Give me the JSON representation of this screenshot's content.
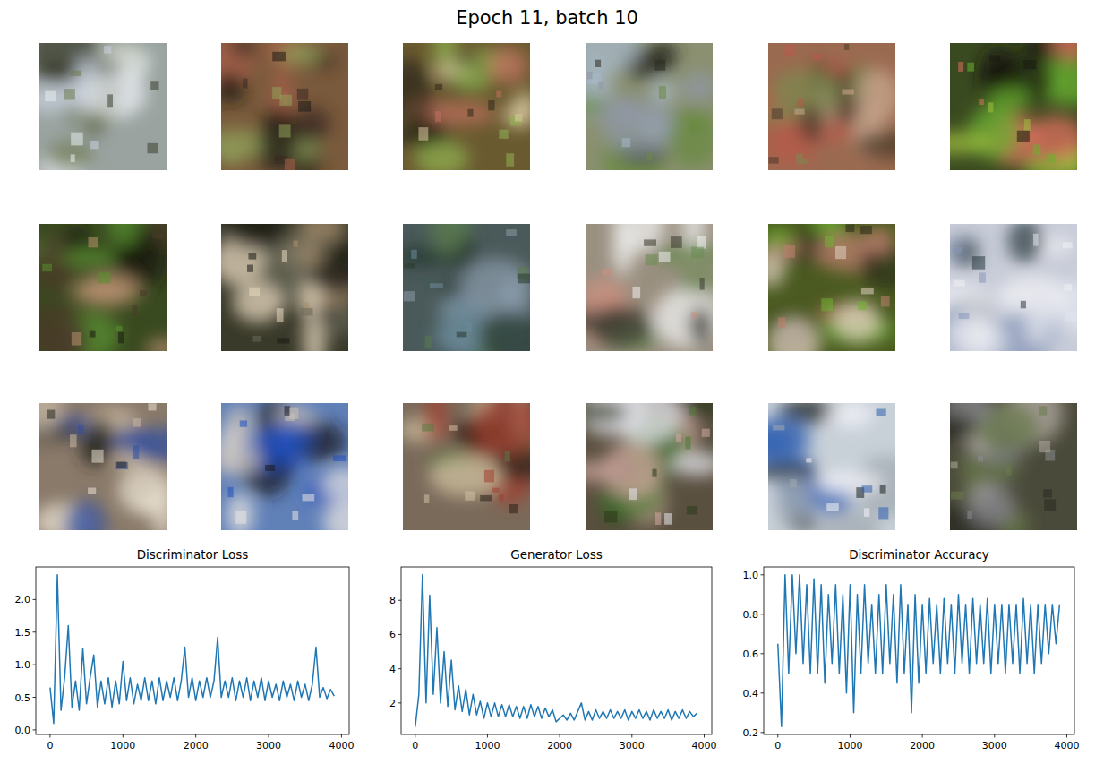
{
  "figure": {
    "title": "Epoch 11, batch 10"
  },
  "chart_data": [
    {
      "type": "line",
      "title": "Discriminator Loss",
      "grid": false,
      "xlim": [
        -195.5,
        4105.5
      ],
      "ylim": [
        -0.07,
        2.5
      ],
      "xticks": [
        0,
        1000,
        2000,
        3000,
        4000
      ],
      "yticks": [
        {
          "value": 0,
          "label": "0.0"
        },
        0.5,
        {
          "value": 1,
          "label": "1.0"
        },
        1.5,
        {
          "value": 2,
          "label": "2.0"
        }
      ],
      "x": [
        0,
        50,
        100,
        150,
        200,
        250,
        300,
        350,
        400,
        450,
        500,
        550,
        600,
        650,
        700,
        750,
        800,
        850,
        900,
        950,
        1000,
        1050,
        1100,
        1150,
        1200,
        1250,
        1300,
        1350,
        1400,
        1450,
        1500,
        1550,
        1600,
        1650,
        1700,
        1750,
        1800,
        1850,
        1900,
        1950,
        2000,
        2050,
        2100,
        2150,
        2200,
        2250,
        2300,
        2350,
        2400,
        2450,
        2500,
        2550,
        2600,
        2650,
        2700,
        2750,
        2800,
        2850,
        2900,
        2950,
        3000,
        3050,
        3100,
        3150,
        3200,
        3250,
        3300,
        3350,
        3400,
        3450,
        3500,
        3550,
        3600,
        3650,
        3700,
        3750,
        3800,
        3850,
        3900
      ],
      "series": [
        {
          "color": "#1f77b4",
          "values": [
            0.65,
            0.1,
            2.38,
            0.3,
            0.8,
            1.6,
            0.35,
            0.75,
            0.3,
            1.25,
            0.4,
            0.8,
            1.15,
            0.35,
            0.75,
            0.4,
            0.8,
            0.35,
            0.75,
            0.4,
            1.05,
            0.45,
            0.8,
            0.4,
            0.7,
            0.45,
            0.8,
            0.45,
            0.75,
            0.4,
            0.8,
            0.45,
            0.75,
            0.5,
            0.8,
            0.45,
            0.75,
            1.27,
            0.5,
            0.8,
            0.45,
            0.75,
            0.5,
            0.8,
            0.5,
            0.75,
            1.42,
            0.5,
            0.75,
            0.5,
            0.8,
            0.45,
            0.75,
            0.5,
            0.8,
            0.45,
            0.75,
            0.5,
            0.8,
            0.45,
            0.75,
            0.5,
            0.7,
            0.45,
            0.75,
            0.5,
            0.7,
            0.45,
            0.75,
            0.5,
            0.7,
            0.45,
            0.7,
            1.27,
            0.5,
            0.65,
            0.48,
            0.62,
            0.52
          ]
        }
      ]
    },
    {
      "type": "line",
      "title": "Generator Loss",
      "grid": false,
      "xlim": [
        -195.5,
        4105.5
      ],
      "ylim": [
        0.16,
        9.95
      ],
      "xticks": [
        0,
        1000,
        2000,
        3000,
        4000
      ],
      "yticks": [
        2,
        4,
        6,
        8
      ],
      "x": [
        0,
        50,
        100,
        150,
        200,
        250,
        300,
        350,
        400,
        450,
        500,
        550,
        600,
        650,
        700,
        750,
        800,
        850,
        900,
        950,
        1000,
        1050,
        1100,
        1150,
        1200,
        1250,
        1300,
        1350,
        1400,
        1450,
        1500,
        1550,
        1600,
        1650,
        1700,
        1750,
        1800,
        1850,
        1900,
        1950,
        2000,
        2050,
        2100,
        2150,
        2200,
        2250,
        2300,
        2350,
        2400,
        2450,
        2500,
        2550,
        2600,
        2650,
        2700,
        2750,
        2800,
        2850,
        2900,
        2950,
        3000,
        3050,
        3100,
        3150,
        3200,
        3250,
        3300,
        3350,
        3400,
        3450,
        3500,
        3550,
        3600,
        3650,
        3700,
        3750,
        3800,
        3850,
        3900
      ],
      "series": [
        {
          "color": "#1f77b4",
          "values": [
            0.6,
            2.5,
            9.5,
            2.0,
            8.3,
            2.5,
            6.4,
            2.0,
            5.0,
            1.8,
            4.5,
            1.6,
            3.0,
            1.5,
            2.8,
            1.3,
            2.5,
            1.3,
            2.1,
            1.1,
            2.0,
            1.2,
            2.0,
            1.2,
            1.9,
            1.2,
            1.9,
            1.2,
            1.8,
            1.1,
            1.8,
            1.1,
            1.9,
            1.2,
            1.8,
            1.1,
            1.7,
            1.2,
            1.6,
            0.9,
            1.1,
            1.3,
            1.0,
            1.4,
            1.0,
            1.5,
            2.0,
            1.0,
            1.5,
            1.0,
            1.6,
            1.1,
            1.5,
            1.1,
            1.6,
            1.1,
            1.5,
            1.1,
            1.6,
            1.0,
            1.5,
            1.1,
            1.6,
            1.1,
            1.5,
            1.0,
            1.6,
            1.1,
            1.5,
            1.1,
            1.6,
            1.0,
            1.5,
            1.1,
            1.6,
            1.1,
            1.5,
            1.2,
            1.4
          ]
        }
      ]
    },
    {
      "type": "line",
      "title": "Discriminator Accuracy",
      "grid": false,
      "xlim": [
        -195.5,
        4105.5
      ],
      "ylim": [
        0.19,
        1.04
      ],
      "xticks": [
        0,
        1000,
        2000,
        3000,
        4000
      ],
      "yticks": [
        0.2,
        0.4,
        0.6,
        0.8,
        {
          "value": 1,
          "label": "1.0"
        }
      ],
      "x": [
        0,
        50,
        100,
        150,
        200,
        250,
        300,
        350,
        400,
        450,
        500,
        550,
        600,
        650,
        700,
        750,
        800,
        850,
        900,
        950,
        1000,
        1050,
        1100,
        1150,
        1200,
        1250,
        1300,
        1350,
        1400,
        1450,
        1500,
        1550,
        1600,
        1650,
        1700,
        1750,
        1800,
        1850,
        1900,
        1950,
        2000,
        2050,
        2100,
        2150,
        2200,
        2250,
        2300,
        2350,
        2400,
        2450,
        2500,
        2550,
        2600,
        2650,
        2700,
        2750,
        2800,
        2850,
        2900,
        2950,
        3000,
        3050,
        3100,
        3150,
        3200,
        3250,
        3300,
        3350,
        3400,
        3450,
        3500,
        3550,
        3600,
        3650,
        3700,
        3750,
        3800,
        3850,
        3900
      ],
      "series": [
        {
          "color": "#1f77b4",
          "values": [
            0.65,
            0.23,
            1.0,
            0.5,
            1.0,
            0.6,
            1.0,
            0.55,
            0.95,
            0.5,
            0.98,
            0.5,
            0.95,
            0.45,
            0.9,
            0.55,
            0.95,
            0.5,
            0.9,
            0.4,
            0.95,
            0.3,
            0.9,
            0.5,
            0.95,
            0.55,
            0.85,
            0.5,
            0.9,
            0.5,
            0.95,
            0.55,
            0.9,
            0.45,
            0.95,
            0.5,
            0.85,
            0.3,
            0.9,
            0.45,
            0.85,
            0.5,
            0.88,
            0.55,
            0.85,
            0.5,
            0.88,
            0.55,
            0.85,
            0.5,
            0.9,
            0.55,
            0.85,
            0.5,
            0.88,
            0.55,
            0.85,
            0.55,
            0.88,
            0.5,
            0.85,
            0.55,
            0.85,
            0.5,
            0.85,
            0.55,
            0.85,
            0.5,
            0.88,
            0.55,
            0.85,
            0.5,
            0.85,
            0.55,
            0.85,
            0.6,
            0.85,
            0.65,
            0.85
          ]
        }
      ]
    }
  ]
}
